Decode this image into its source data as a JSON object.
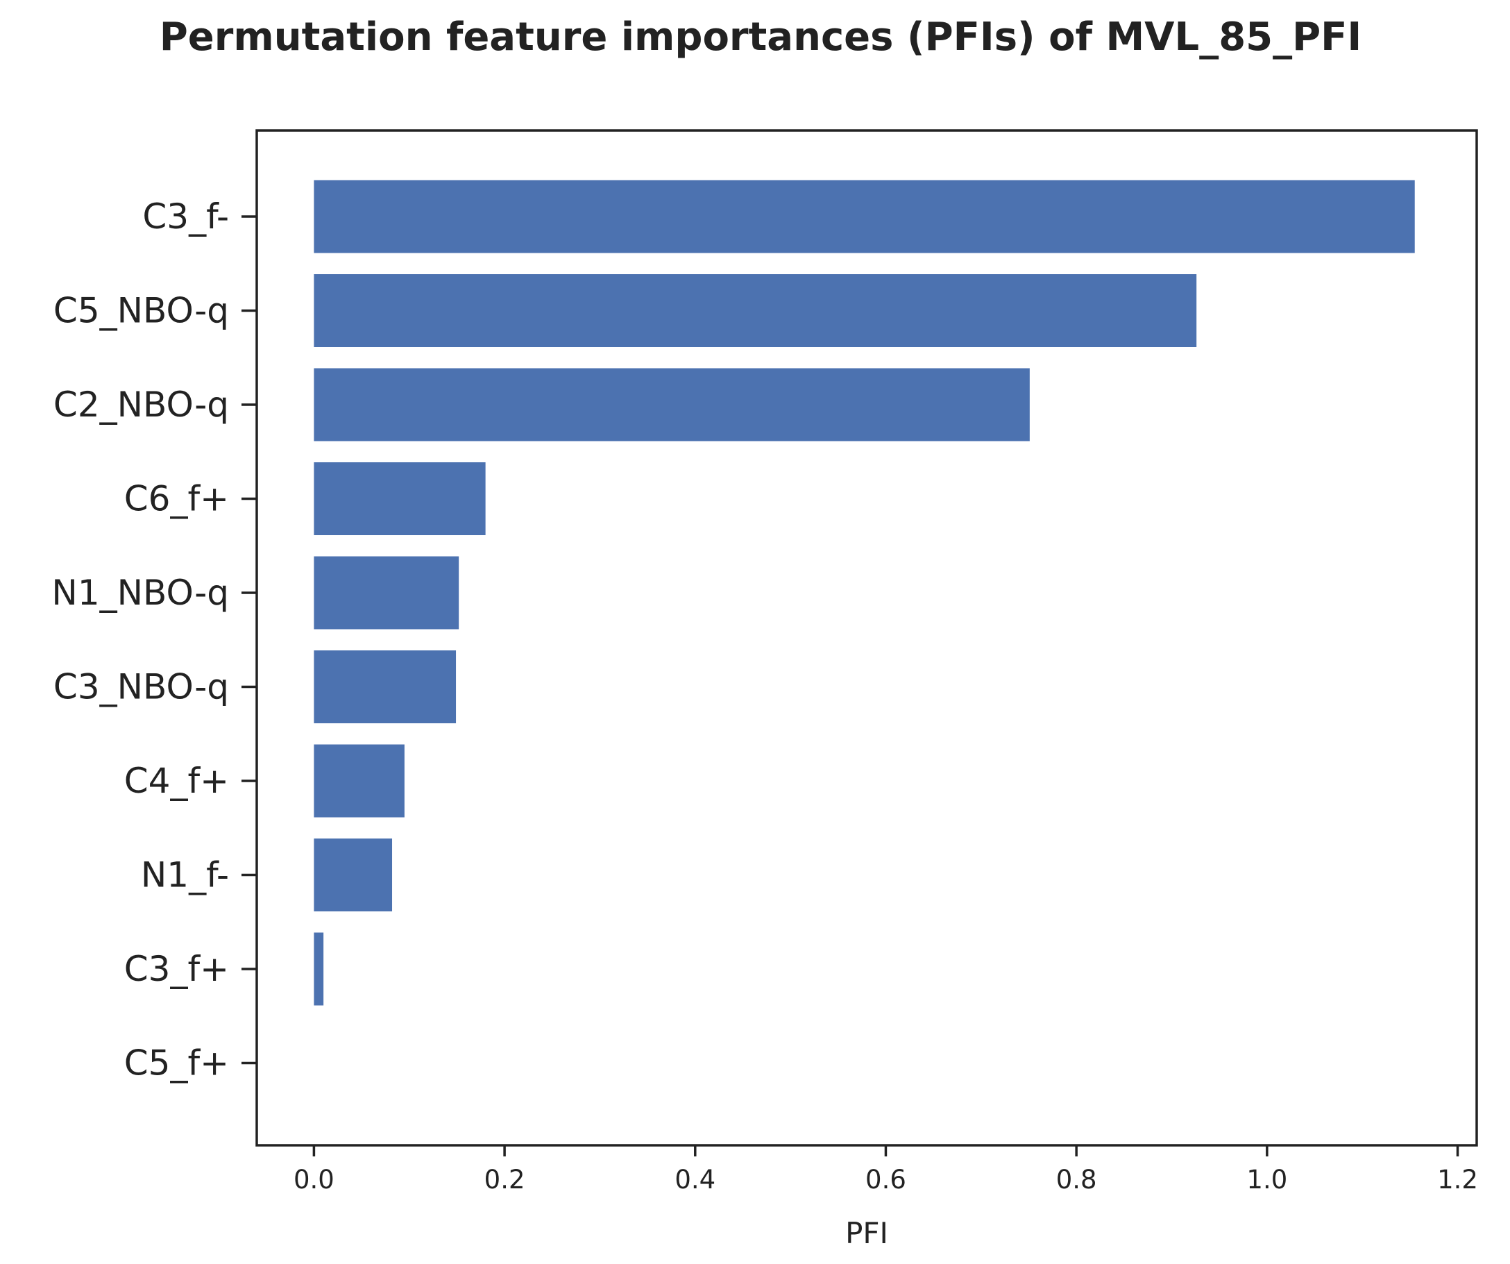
{
  "chart_data": {
    "type": "bar",
    "orientation": "horizontal",
    "title": "Permutation feature importances (PFIs) of MVL_85_PFI",
    "xlabel": "PFI",
    "ylabel": "",
    "categories": [
      "C3_f-",
      "C5_NBO-q",
      "C2_NBO-q",
      "C6_f+",
      "N1_NBO-q",
      "C3_NBO-q",
      "C4_f+",
      "N1_f-",
      "C3_f+",
      "C5_f+"
    ],
    "values": [
      1.155,
      0.926,
      0.751,
      0.18,
      0.152,
      0.149,
      0.095,
      0.082,
      0.01,
      0.0
    ],
    "xlim": [
      -0.06,
      1.22
    ],
    "xticks": [
      0.0,
      0.2,
      0.4,
      0.6,
      0.8,
      1.0,
      1.2
    ],
    "xtick_labels": [
      "0.0",
      "0.2",
      "0.4",
      "0.6",
      "0.8",
      "1.0",
      "1.2"
    ],
    "grid": false,
    "bar_color": "#4c72b0",
    "axis_color": "#222222"
  }
}
